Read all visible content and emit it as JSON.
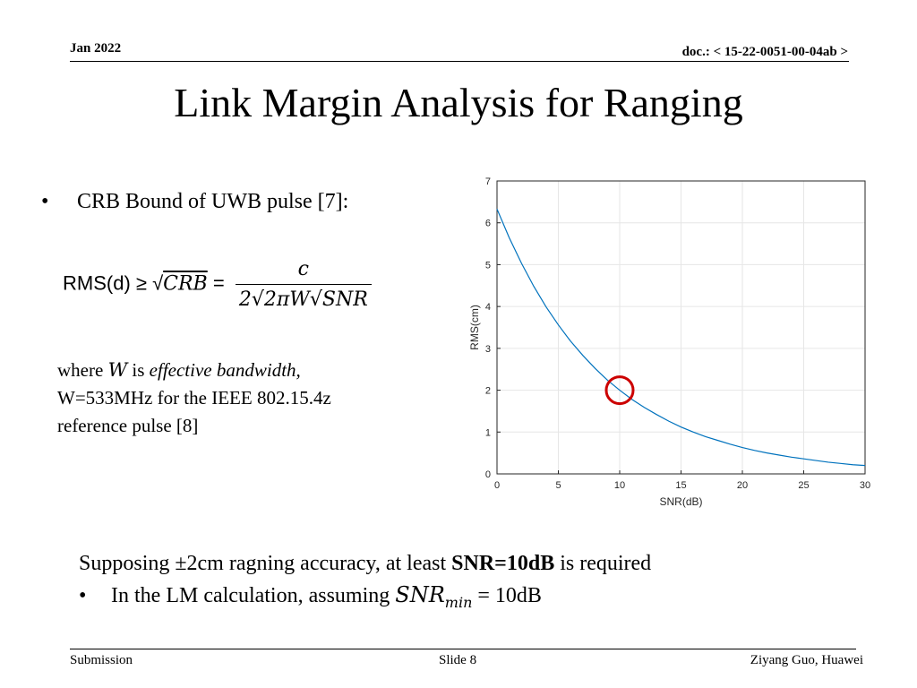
{
  "header": {
    "date": "Jan 2022",
    "doc_prefix": "doc.:",
    "doc_id": "< 15-22-0051-00-04ab >"
  },
  "title": "Link Margin Analysis for Ranging",
  "bullet1": "CRB Bound of UWB pulse [7]:",
  "formula": {
    "lhs": "RMS(d) ≥ √",
    "crb": "CRB",
    "eq": " =",
    "numerator": "c",
    "denominator": "2√2πW√SNR"
  },
  "where_text": {
    "w1": "where",
    "w_sym": "W",
    "w2": "is",
    "w3": "effective bandwidth,",
    "line2": "W=533MHz for the IEEE 802.15.4z",
    "line3": "reference pulse [8]"
  },
  "supposing": {
    "pre": "Supposing ±2cm ragning accuracy, at least",
    "bold": "SNR=10dB",
    "post": "is required"
  },
  "bullet2": {
    "pre": "In the LM calculation, assuming",
    "sym": "SNR",
    "sub": "min",
    "post": "= 10dB"
  },
  "footer": {
    "left": "Submission",
    "center": "Slide 8",
    "right": "Ziyang Guo, Huawei"
  },
  "chart_data": {
    "type": "line",
    "xlabel": "SNR(dB)",
    "ylabel": "RMS(cm)",
    "xlim": [
      0,
      30
    ],
    "ylim": [
      0,
      7
    ],
    "xticks": [
      0,
      5,
      10,
      15,
      20,
      25,
      30
    ],
    "yticks": [
      0,
      1,
      2,
      3,
      4,
      5,
      6,
      7
    ],
    "grid": true,
    "x": [
      0,
      1,
      2,
      3,
      4,
      5,
      6,
      7,
      8,
      9,
      10,
      11,
      12,
      13,
      14,
      15,
      16,
      17,
      18,
      19,
      20,
      21,
      22,
      23,
      24,
      25,
      26,
      27,
      28,
      29,
      30
    ],
    "series": [
      {
        "color": "#0072BD",
        "values": [
          6.33,
          5.64,
          5.03,
          4.48,
          3.99,
          3.56,
          3.17,
          2.83,
          2.52,
          2.24,
          2.0,
          1.78,
          1.59,
          1.42,
          1.26,
          1.12,
          1.0,
          0.89,
          0.8,
          0.71,
          0.63,
          0.56,
          0.5,
          0.45,
          0.4,
          0.36,
          0.32,
          0.28,
          0.25,
          0.22,
          0.2
        ]
      }
    ],
    "annotation": {
      "type": "circle",
      "color": "#cc0000",
      "x": 10,
      "y": 2.0
    }
  }
}
